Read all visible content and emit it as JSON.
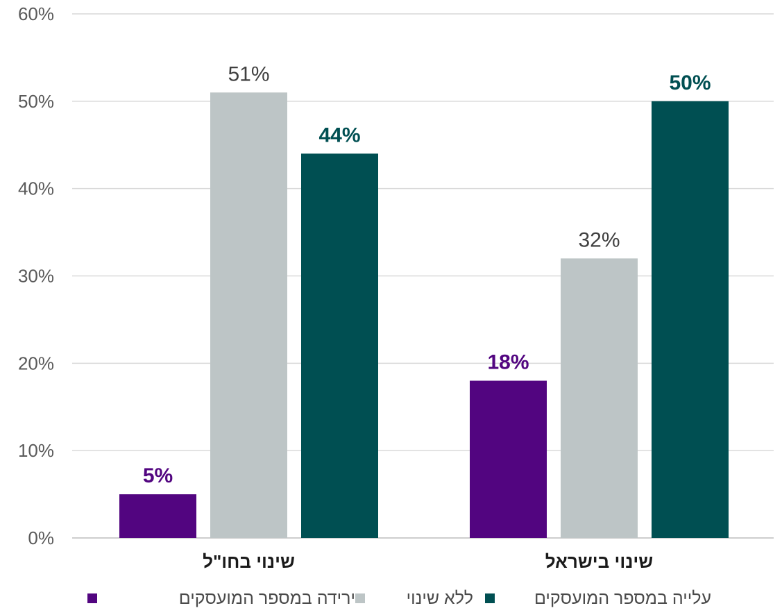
{
  "chart_data": {
    "type": "bar",
    "categories": [
      "שינוי בחו\"ל",
      "שינוי בישראל"
    ],
    "series": [
      {
        "name": "ירידה במספר המועסקים",
        "values": [
          5,
          18
        ],
        "color": "#520580",
        "label_color": "#520580",
        "label_bold": true
      },
      {
        "name": "ללא שינוי",
        "values": [
          51,
          32
        ],
        "color": "#bdc5c6",
        "label_color": "#404040",
        "label_bold": false
      },
      {
        "name": "עלייה במספר המועסקים",
        "values": [
          44,
          50
        ],
        "color": "#004f52",
        "label_color": "#004f52",
        "label_bold": true
      }
    ],
    "data_labels": [
      [
        "5%",
        "18%"
      ],
      [
        "51%",
        "32%"
      ],
      [
        "44%",
        "50%"
      ]
    ],
    "yticks": [
      "0%",
      "10%",
      "20%",
      "30%",
      "40%",
      "50%",
      "60%"
    ],
    "ylim": [
      0,
      60
    ],
    "grid": true,
    "legend_position": "bottom"
  }
}
